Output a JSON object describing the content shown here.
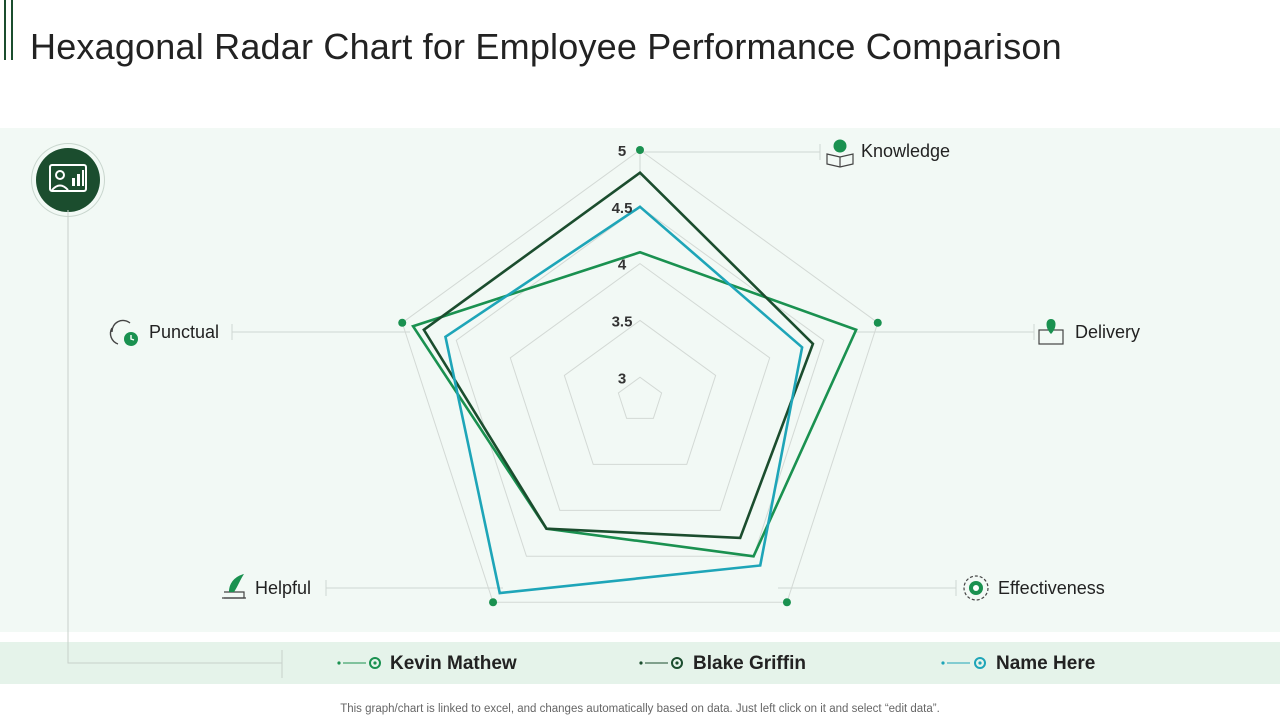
{
  "header": {
    "title": "Hexagonal Radar Chart for Employee Performance Comparison"
  },
  "footer": {
    "note": "This graph/chart is linked to excel, and changes automatically based on data. Just left click on it and select “edit data”."
  },
  "icons": {
    "badge": "presentation-person-icon",
    "knowledge": "book-brain-icon",
    "delivery": "location-box-icon",
    "effectiveness": "gear-target-icon",
    "helpful": "helping-hand-icon",
    "punctual": "clock-cycle-icon"
  },
  "colors": {
    "accent_dark": "#1b4d2e",
    "panel_bg": "#f2f9f5",
    "legend_bg": "#e5f3ea"
  },
  "chart_data": {
    "type": "radar",
    "axes": [
      "Knowledge",
      "Delivery",
      "Effectiveness",
      "Helpful",
      "Punctual"
    ],
    "r_ticks": [
      "3",
      "3.5",
      "4",
      "4.5",
      "5"
    ],
    "r_min": 2.8,
    "r_max": 5,
    "series": [
      {
        "name": "Kevin Mathew",
        "color": "#1a9150",
        "values": [
          4.1,
          4.8,
          4.5,
          4.2,
          4.9
        ]
      },
      {
        "name": "Blake Griffin",
        "color": "#1b4d2e",
        "values": [
          4.8,
          4.4,
          4.3,
          4.2,
          4.8
        ]
      },
      {
        "name": "Name Here",
        "color": "#1ea5b8",
        "values": [
          4.5,
          4.3,
          4.6,
          4.9,
          4.6
        ]
      }
    ]
  }
}
